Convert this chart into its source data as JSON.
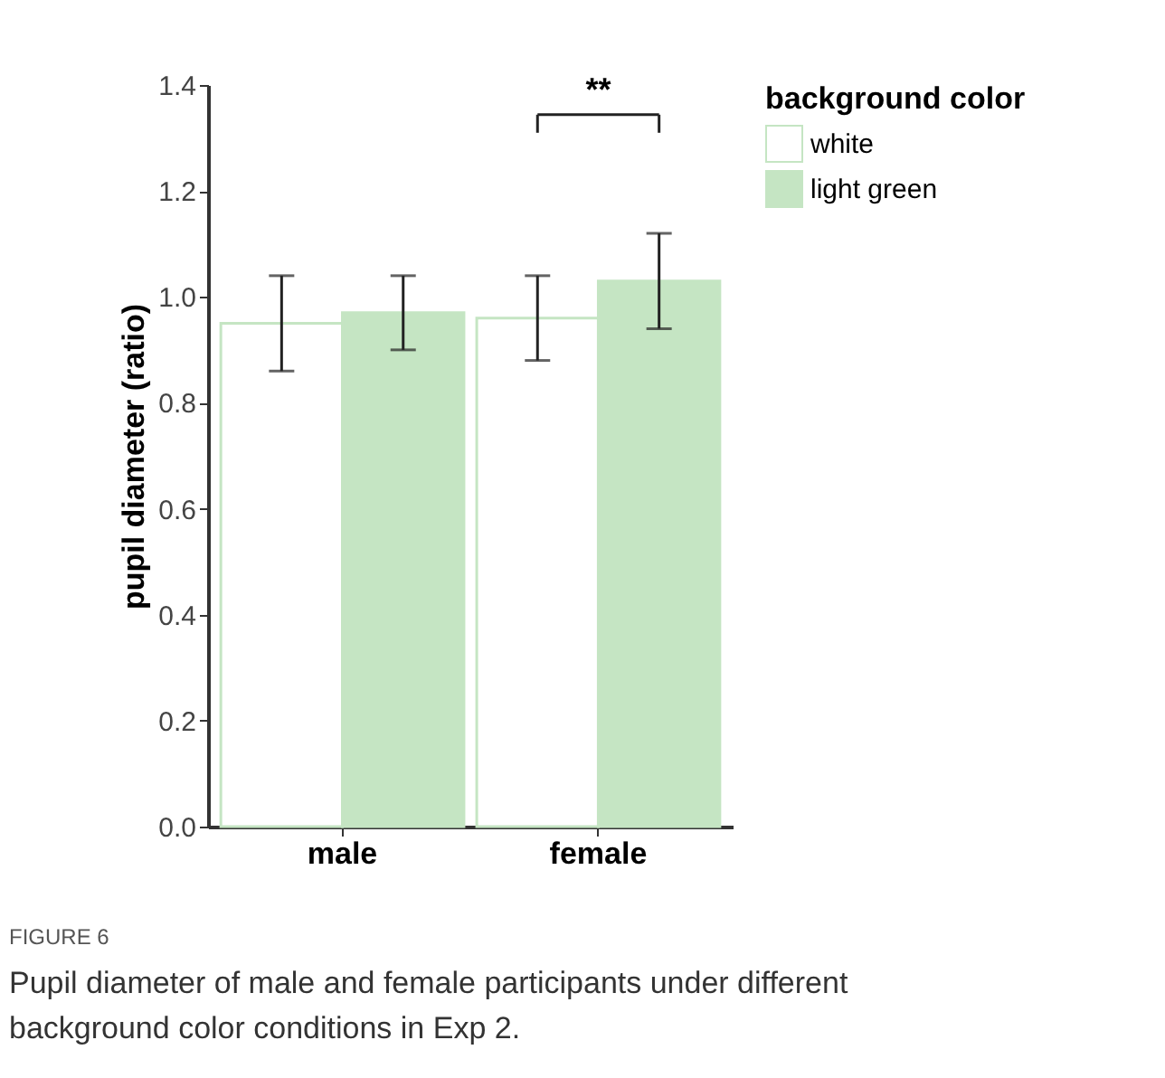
{
  "chart_data": {
    "type": "bar",
    "categories": [
      "male",
      "female"
    ],
    "ylabel": "pupil diameter (ratio)",
    "legend_title": "background color",
    "series": [
      {
        "name": "white",
        "color": "#ffffff",
        "values": [
          0.95,
          0.96
        ],
        "errors": [
          [
            0.86,
            1.04
          ],
          [
            0.88,
            1.04
          ]
        ]
      },
      {
        "name": "light green",
        "color": "#c5e5c3",
        "values": [
          0.97,
          1.03
        ],
        "errors": [
          [
            0.9,
            1.04
          ],
          [
            0.94,
            1.12
          ]
        ]
      }
    ],
    "ylim": [
      0,
      1.4
    ],
    "yticks": [
      {
        "value": 0,
        "label": "0.0"
      },
      0.2,
      0.4,
      0.6,
      0.8,
      {
        "value": 1,
        "label": "1.0"
      },
      1.2,
      1.4
    ],
    "grid": false,
    "legend": "right",
    "annotations": [
      "**",
      "FIGURE 6",
      "Pupil diameter of male and female participants under different background color conditions in Exp 2."
    ]
  }
}
